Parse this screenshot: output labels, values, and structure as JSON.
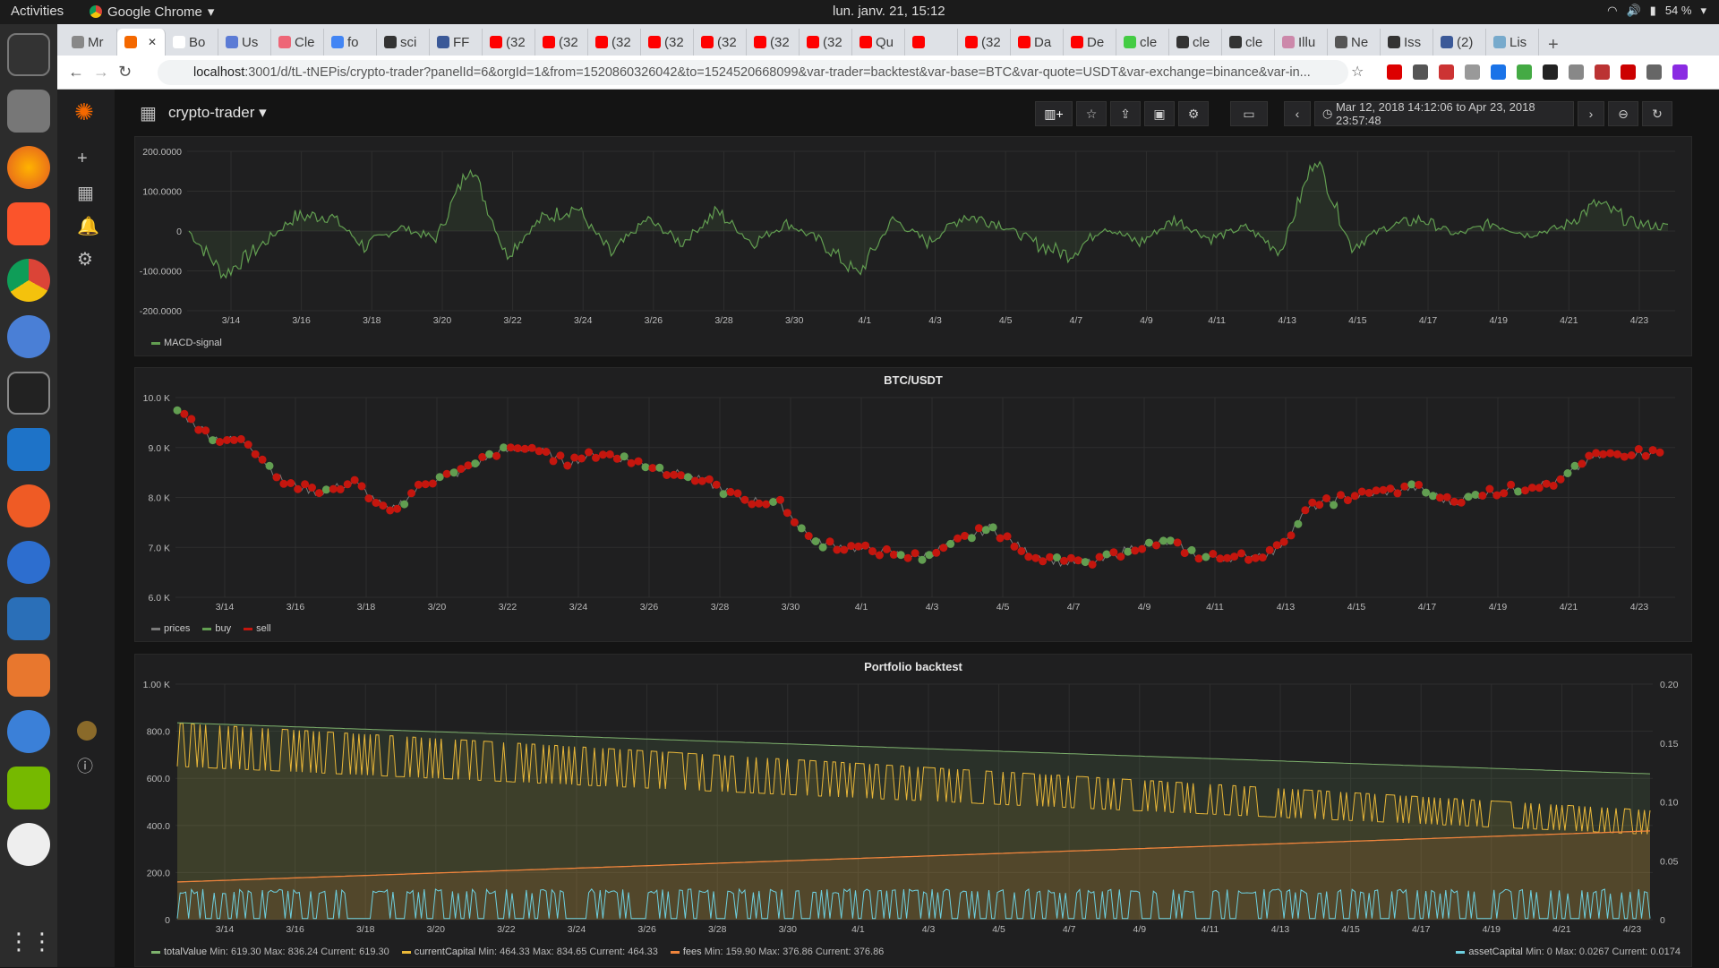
{
  "os": {
    "activities": "Activities",
    "app_name": "Google Chrome",
    "clock": "lun. janv. 21, 15:12",
    "battery": "54 %"
  },
  "browser": {
    "tabs": [
      {
        "label": "Mr"
      },
      {
        "label": ""
      },
      {
        "label": "Bo"
      },
      {
        "label": "Us"
      },
      {
        "label": "Cle"
      },
      {
        "label": "fo"
      },
      {
        "label": "sci"
      },
      {
        "label": "FF"
      },
      {
        "label": "(32"
      },
      {
        "label": "(32"
      },
      {
        "label": "(32"
      },
      {
        "label": "(32"
      },
      {
        "label": "(32"
      },
      {
        "label": "(32"
      },
      {
        "label": "(32"
      },
      {
        "label": "Qu"
      },
      {
        "label": ""
      },
      {
        "label": "(32"
      },
      {
        "label": "Da"
      },
      {
        "label": "De"
      },
      {
        "label": "cle"
      },
      {
        "label": "cle"
      },
      {
        "label": "cle"
      },
      {
        "label": "Illu"
      },
      {
        "label": "Ne"
      },
      {
        "label": "Iss"
      },
      {
        "label": "(2)"
      },
      {
        "label": "Lis"
      }
    ],
    "url_host": "localhost",
    "url_rest": ":3001/d/tL-tNEPis/crypto-trader?panelId=6&orgId=1&from=1520860326042&to=1524520668099&var-trader=backtest&var-base=BTC&var-quote=USDT&var-exchange=binance&var-in..."
  },
  "dashboard": {
    "title": "crypto-trader",
    "time_range": "Mar 12, 2018 14:12:06 to Apr 23, 2018 23:57:48"
  },
  "x_ticks": [
    "3/14",
    "3/16",
    "3/18",
    "3/20",
    "3/22",
    "3/24",
    "3/26",
    "3/28",
    "3/30",
    "4/1",
    "4/3",
    "4/5",
    "4/7",
    "4/9",
    "4/11",
    "4/13",
    "4/15",
    "4/17",
    "4/19",
    "4/21",
    "4/23"
  ],
  "panels": {
    "macd": {
      "title": "",
      "legend": "MACD-signal",
      "y_ticks": [
        "200.0000",
        "100.0000",
        "0",
        "-100.0000",
        "-200.0000"
      ]
    },
    "price": {
      "title": "BTC/USDT",
      "y_ticks": [
        "10.0 K",
        "9.0 K",
        "8.0 K",
        "7.0 K",
        "6.0 K"
      ],
      "legend": {
        "prices": "prices",
        "buy": "buy",
        "sell": "sell"
      }
    },
    "portfolio": {
      "title": "Portfolio backtest",
      "y_ticks": [
        "1.00 K",
        "800.0",
        "600.0",
        "400.0",
        "200.0",
        "0"
      ],
      "y2_ticks": [
        "0.20",
        "0.15",
        "0.10",
        "0.05",
        "0"
      ],
      "legend": {
        "totalValue": "totalValue",
        "tv_stats": "Min: 619.30  Max: 836.24  Current: 619.30",
        "currentCapital": "currentCapital",
        "cc_stats": "Min: 464.33  Max: 834.65  Current: 464.33",
        "fees": "fees",
        "fees_stats": "Min: 159.90  Max: 376.86  Current: 376.86",
        "assetCapital": "assetCapital",
        "ac_stats": "Min: 0  Max: 0.0267  Current: 0.0174"
      }
    }
  },
  "colors": {
    "macd": "#629e51",
    "prices": "#7a7a7a",
    "buy": "#629e51",
    "sell": "#c4160e",
    "totalValue": "#7eb26d",
    "currentCapital": "#eab839",
    "fees": "#ef843c",
    "assetCapital": "#6ed0e0"
  },
  "chart_data": [
    {
      "type": "line",
      "title": "",
      "series": [
        {
          "name": "MACD-signal",
          "x": [
            "3/12",
            "3/13",
            "3/14",
            "3/15",
            "3/16",
            "3/17",
            "3/18",
            "3/19",
            "3/20",
            "3/21",
            "3/22",
            "3/23",
            "3/24",
            "3/25",
            "3/26",
            "3/27",
            "3/28",
            "3/29",
            "3/30",
            "3/31",
            "4/1",
            "4/2",
            "4/3",
            "4/4",
            "4/5",
            "4/6",
            "4/7",
            "4/8",
            "4/9",
            "4/10",
            "4/11",
            "4/12",
            "4/13",
            "4/14",
            "4/15",
            "4/16",
            "4/17",
            "4/18",
            "4/19",
            "4/20",
            "4/21",
            "4/22",
            "4/23"
          ],
          "values": [
            0,
            -110,
            -40,
            35,
            40,
            -40,
            10,
            -20,
            170,
            -60,
            30,
            60,
            -60,
            30,
            -30,
            50,
            -30,
            20,
            -30,
            -110,
            30,
            -30,
            40,
            20,
            -30,
            -60,
            10,
            -30,
            30,
            -20,
            10,
            -50,
            190,
            -40,
            10,
            30,
            -10,
            20,
            -10,
            10,
            70,
            20,
            10
          ]
        }
      ],
      "ylim": [
        -200,
        200
      ],
      "xlabel": "",
      "ylabel": ""
    },
    {
      "type": "line",
      "title": "BTC/USDT",
      "series": [
        {
          "name": "prices",
          "x": [
            "3/12",
            "3/13",
            "3/14",
            "3/15",
            "3/16",
            "3/17",
            "3/18",
            "3/19",
            "3/20",
            "3/21",
            "3/22",
            "3/23",
            "3/24",
            "3/25",
            "3/26",
            "3/27",
            "3/28",
            "3/29",
            "3/30",
            "3/31",
            "4/1",
            "4/2",
            "4/3",
            "4/4",
            "4/5",
            "4/6",
            "4/7",
            "4/8",
            "4/9",
            "4/10",
            "4/11",
            "4/12",
            "4/13",
            "4/14",
            "4/15",
            "4/16",
            "4/17",
            "4/18",
            "4/19",
            "4/20",
            "4/21",
            "4/22",
            "4/23"
          ],
          "values": [
            9750,
            9200,
            9100,
            8300,
            8100,
            8300,
            7700,
            8300,
            8500,
            8900,
            9000,
            8700,
            8900,
            8700,
            8500,
            8300,
            7950,
            7900,
            7100,
            7000,
            6900,
            6800,
            7100,
            7400,
            6900,
            6700,
            6700,
            7000,
            7100,
            6800,
            6800,
            6900,
            7800,
            8000,
            8100,
            8200,
            7900,
            8100,
            8200,
            8300,
            8800,
            8900,
            8900
          ]
        },
        {
          "name": "buy",
          "values": []
        },
        {
          "name": "sell",
          "values": []
        }
      ],
      "ylim": [
        6000,
        10000
      ],
      "xlabel": "",
      "ylabel": ""
    },
    {
      "type": "area",
      "title": "Portfolio backtest",
      "series": [
        {
          "name": "totalValue",
          "min": 619.3,
          "max": 836.24,
          "current": 619.3
        },
        {
          "name": "currentCapital",
          "min": 464.33,
          "max": 834.65,
          "current": 464.33
        },
        {
          "name": "fees",
          "min": 159.9,
          "max": 376.86,
          "current": 376.86
        },
        {
          "name": "assetCapital",
          "min": 0,
          "max": 0.0267,
          "current": 0.0174
        }
      ],
      "ylim": [
        0,
        1000
      ],
      "y2lim": [
        0,
        0.2
      ]
    }
  ]
}
